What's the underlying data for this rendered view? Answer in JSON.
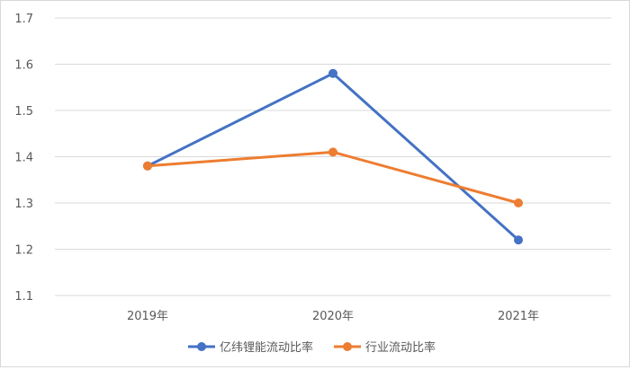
{
  "chart_data": {
    "type": "line",
    "title": "",
    "xlabel": "",
    "ylabel": "",
    "categories": [
      "2019年",
      "2020年",
      "2021年"
    ],
    "y_ticks": [
      "1.1",
      "1.2",
      "1.3",
      "1.4",
      "1.5",
      "1.6",
      "1.7"
    ],
    "ylim": [
      1.1,
      1.7
    ],
    "grid": true,
    "legend_position": "bottom",
    "series": [
      {
        "name": "亿纬锂能流动比率",
        "color": "#4472c4",
        "values": [
          1.38,
          1.58,
          1.22
        ]
      },
      {
        "name": "行业流动比率",
        "color": "#ed7d31",
        "values": [
          1.38,
          1.41,
          1.3
        ]
      }
    ]
  }
}
